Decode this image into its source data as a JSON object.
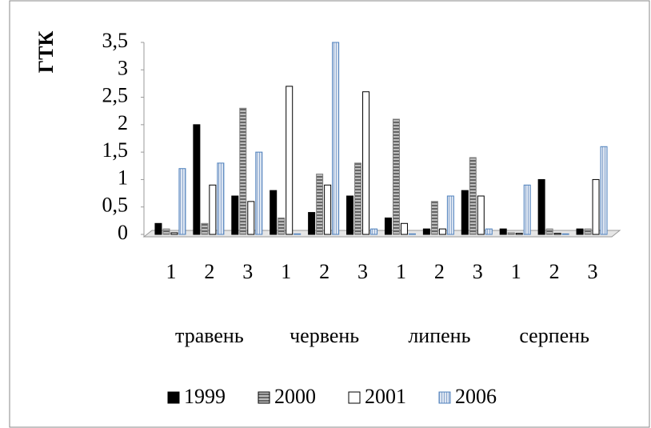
{
  "chart_data": {
    "type": "bar",
    "y_label": "ГТК",
    "categories": [
      "1",
      "2",
      "3",
      "1",
      "2",
      "3",
      "1",
      "2",
      "3",
      "1",
      "2",
      "3"
    ],
    "month_groups": [
      "травень",
      "червень",
      "липень",
      "серпень"
    ],
    "series": [
      {
        "name": "1999",
        "color": "#000000",
        "values": [
          0.2,
          2.0,
          0.7,
          0.8,
          0.4,
          0.7,
          0.3,
          0.1,
          0.8,
          0.1,
          1.0,
          0.1
        ]
      },
      {
        "name": "2000",
        "color": "#7f7f7f",
        "values": [
          0.1,
          0.2,
          2.3,
          0.3,
          1.1,
          1.3,
          2.1,
          0.6,
          1.4,
          0.03,
          0.1,
          0.1
        ]
      },
      {
        "name": "2001",
        "color": "#ffffff",
        "values": [
          0.03,
          0.9,
          0.6,
          2.7,
          0.9,
          2.6,
          0.2,
          0.1,
          0.7,
          0.02,
          0.02,
          1.0
        ]
      },
      {
        "name": "2006",
        "color": "#4f81bd",
        "values": [
          1.2,
          1.3,
          1.5,
          0.01,
          3.5,
          0.1,
          0.01,
          0.7,
          0.1,
          0.9,
          0.01,
          1.6
        ]
      }
    ],
    "ylim": [
      0,
      3.5
    ],
    "yticks": [
      0,
      {
        "value": 0.5,
        "label": "0,5"
      },
      1,
      {
        "value": 1.5,
        "label": "1,5"
      },
      2,
      {
        "value": 2.5,
        "label": "2,5"
      },
      3,
      {
        "value": 3.5,
        "label": "3,5"
      }
    ],
    "grid": false
  }
}
